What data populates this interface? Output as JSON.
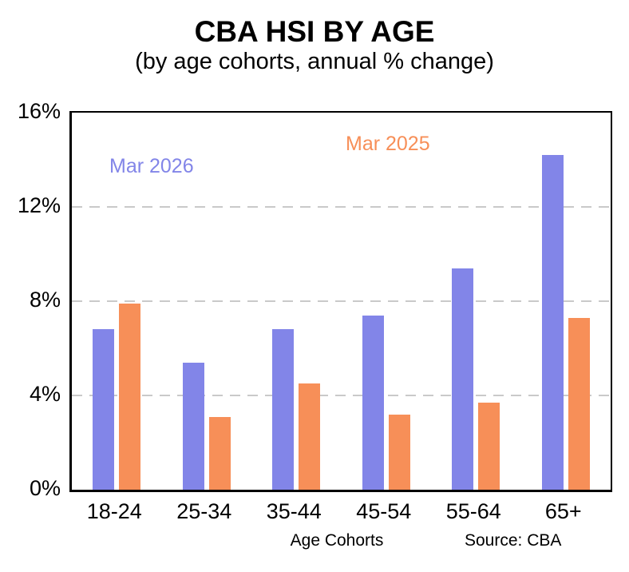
{
  "header": {
    "title": "CBA HSI BY AGE",
    "subtitle": "(by age cohorts, annual % change)"
  },
  "chart_data": {
    "type": "bar",
    "title": "CBA HSI BY AGE",
    "subtitle": "(by age cohorts, annual % change)",
    "categories": [
      "18-24",
      "25-34",
      "35-44",
      "45-54",
      "55-64",
      "65+"
    ],
    "series": [
      {
        "name": "Mar 2026",
        "color": "#8285E8",
        "values": [
          6.8,
          5.4,
          6.8,
          7.4,
          9.4,
          14.2
        ]
      },
      {
        "name": "Mar 2025",
        "color": "#F78F58",
        "values": [
          7.9,
          3.1,
          4.5,
          3.2,
          3.7,
          7.3
        ]
      }
    ],
    "xlabel": "Age Cohorts",
    "ylabel": "",
    "ylim": [
      0,
      16
    ],
    "y_ticks": [
      0,
      4,
      8,
      12,
      16
    ],
    "y_tick_suffix": "%",
    "grid": "horizontal dashed gridlines at 4%, 8%, 12%",
    "gridline_color": "#C9C9C9",
    "legend_position": "inside plot, top area, colored text labels (no swatches)",
    "annotations": []
  },
  "legend": {
    "series1_label": "Mar 2026",
    "series2_label": "Mar 2025"
  },
  "footer": {
    "xlabel": "Age Cohorts",
    "source": "Source: CBA"
  },
  "colors": {
    "series1": "#8285E8",
    "series2": "#F78F58",
    "axis": "#000000",
    "gridline": "#C9C9C9",
    "background": "#FFFFFF",
    "text": "#000000"
  }
}
